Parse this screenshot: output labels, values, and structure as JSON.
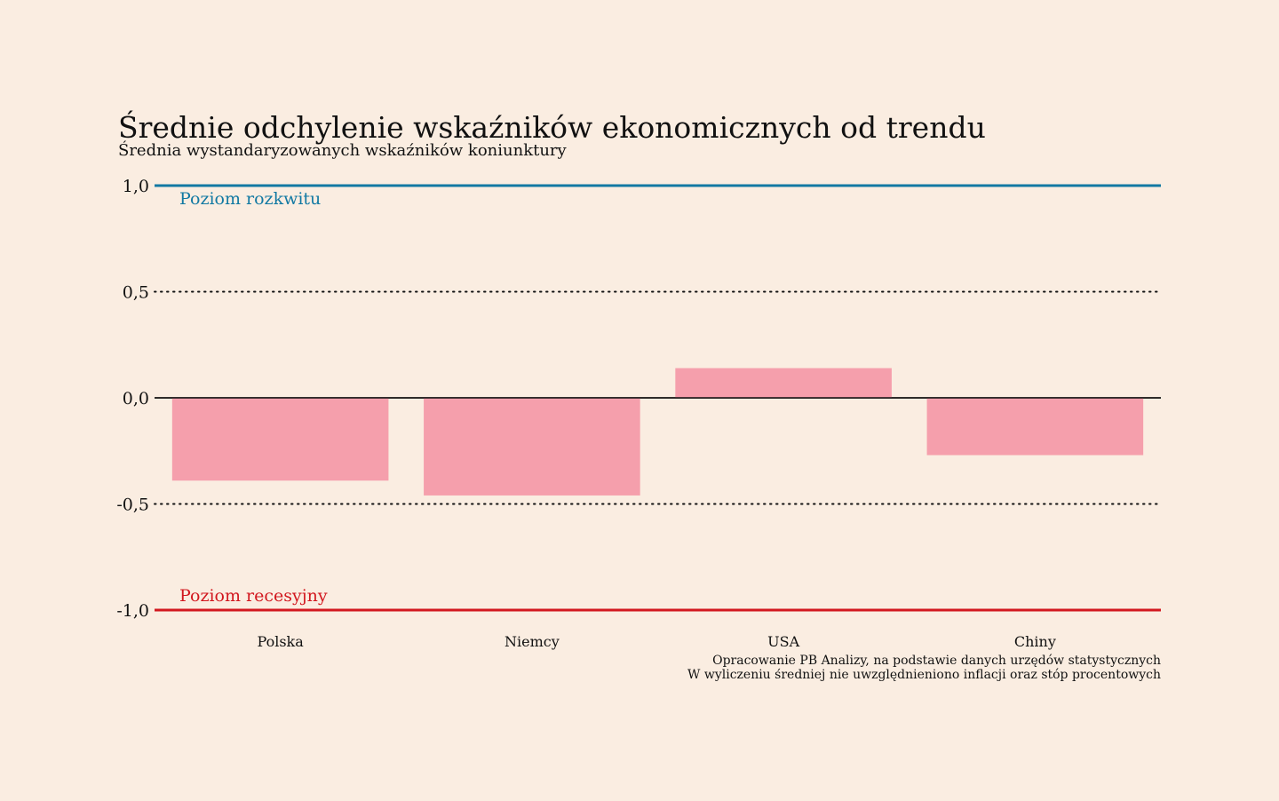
{
  "chart_data": {
    "type": "bar",
    "title": "Średnie odchylenie wskaźników ekonomicznych od trendu",
    "subtitle": "Średnia wystandaryzowanych wskaźników koniunktury",
    "categories": [
      "Polska",
      "Niemcy",
      "USA",
      "Chiny"
    ],
    "values": [
      -0.39,
      -0.46,
      0.14,
      -0.27
    ],
    "ylim": [
      -1.0,
      1.0
    ],
    "yticks": [
      1.0,
      0.5,
      0.0,
      -0.5,
      -1.0
    ],
    "ytick_labels": [
      "1,0",
      "0,5",
      "0,0",
      "-0,5",
      "-1,0"
    ],
    "grid": "dotted at 0,5 and -0,5",
    "reference_lines": [
      {
        "value": 1.0,
        "label": "Poziom rozkwitu",
        "color": "#1279a3"
      },
      {
        "value": -1.0,
        "label": "Poziom recesyjny",
        "color": "#d2181f"
      }
    ],
    "bar_color": "#f59fac",
    "source_lines": [
      "Opracowanie PB Analizy, na podstawie danych urzędów statystycznych",
      "W wyliczeniu średniej nie uwzględnieniono inflacji oraz stóp procentowych"
    ]
  }
}
